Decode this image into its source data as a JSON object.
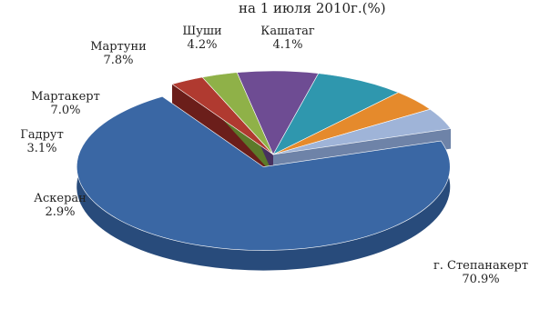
{
  "header": {
    "title_fragment": "на 1 июля 2010г.(%)"
  },
  "chart_data": {
    "type": "pie",
    "title": "",
    "style": "3d-exploded",
    "slices": [
      {
        "label": "г. Степанакерт",
        "value": 70.9,
        "value_text": "70.9%",
        "color": "#3A67A4",
        "side": "#284B7B",
        "exploded": true
      },
      {
        "label": "Аскеран",
        "value": 2.9,
        "value_text": "2.9%",
        "color": "#B03A30",
        "side": "#6B1E1A",
        "exploded": false
      },
      {
        "label": "Гадрут",
        "value": 3.1,
        "value_text": "3.1%",
        "color": "#8FB148",
        "side": "#5C7A2A",
        "exploded": false
      },
      {
        "label": "Мартакерт",
        "value": 7.0,
        "value_text": "7.0%",
        "color": "#6E4C93",
        "side": "#47305F",
        "exploded": false
      },
      {
        "label": "Мартуни",
        "value": 7.8,
        "value_text": "7.8%",
        "color": "#2F97AE",
        "side": "#1D6373",
        "exploded": false
      },
      {
        "label": "Шуши",
        "value": 4.2,
        "value_text": "4.2%",
        "color": "#E58A2C",
        "side": "#A05C16",
        "exploded": false
      },
      {
        "label": "Кашатаг",
        "value": 4.1,
        "value_text": "4.1%",
        "color": "#9FB4D8",
        "side": "#6E83A8",
        "exploded": false
      }
    ]
  }
}
